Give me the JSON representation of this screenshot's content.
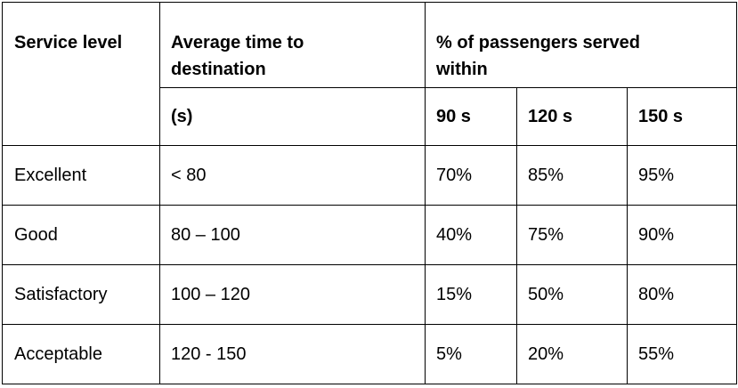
{
  "table": {
    "headers": {
      "service_level": "Service level",
      "avg_time_line1": "Average time to",
      "avg_time_line2": "destination",
      "avg_time_unit": "(s)",
      "pct_line1": "% of passengers served",
      "pct_line2": "within",
      "col_90": "90 s",
      "col_120": "120 s",
      "col_150": "150 s"
    },
    "rows": [
      {
        "level": "Excellent",
        "avg_time": "< 80",
        "p90": "70%",
        "p120": "85%",
        "p150": "95%"
      },
      {
        "level": "Good",
        "avg_time": "80 – 100",
        "p90": "40%",
        "p120": "75%",
        "p150": "90%"
      },
      {
        "level": "Satisfactory",
        "avg_time": "100 – 120",
        "p90": "15%",
        "p120": "50%",
        "p150": "80%"
      },
      {
        "level": "Acceptable",
        "avg_time": "120 - 150",
        "p90": "5%",
        "p120": "20%",
        "p150": "55%"
      }
    ]
  }
}
